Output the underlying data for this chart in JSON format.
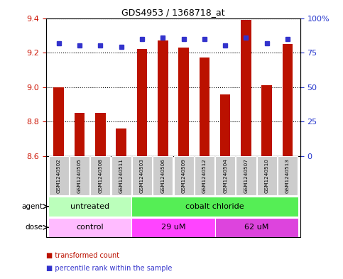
{
  "title": "GDS4953 / 1368718_at",
  "samples": [
    "GSM1240502",
    "GSM1240505",
    "GSM1240508",
    "GSM1240511",
    "GSM1240503",
    "GSM1240506",
    "GSM1240509",
    "GSM1240512",
    "GSM1240504",
    "GSM1240507",
    "GSM1240510",
    "GSM1240513"
  ],
  "bar_values": [
    9.0,
    8.85,
    8.85,
    8.76,
    9.22,
    9.27,
    9.23,
    9.17,
    8.96,
    9.39,
    9.01,
    9.25
  ],
  "percentile_values": [
    82,
    80,
    80,
    79,
    85,
    86,
    85,
    85,
    80,
    86,
    82,
    85
  ],
  "bar_bottom": 8.6,
  "ylim_left": [
    8.6,
    9.4
  ],
  "ylim_right": [
    0,
    100
  ],
  "yticks_left": [
    8.6,
    8.8,
    9.0,
    9.2,
    9.4
  ],
  "yticks_right": [
    0,
    25,
    50,
    75,
    100
  ],
  "ytick_labels_right": [
    "0",
    "25",
    "50",
    "75",
    "100%"
  ],
  "bar_color": "#bb1100",
  "percentile_color": "#3333cc",
  "grid_color": "black",
  "agent_groups": [
    {
      "label": "untreated",
      "start": 0,
      "end": 4,
      "color": "#bbffbb"
    },
    {
      "label": "cobalt chloride",
      "start": 4,
      "end": 12,
      "color": "#55ee55"
    }
  ],
  "dose_groups": [
    {
      "label": "control",
      "start": 0,
      "end": 4,
      "color": "#ffbbff"
    },
    {
      "label": "29 uM",
      "start": 4,
      "end": 8,
      "color": "#ff44ff"
    },
    {
      "label": "62 uM",
      "start": 8,
      "end": 12,
      "color": "#dd44dd"
    }
  ],
  "left_label_color": "#cc1100",
  "right_label_color": "#2233cc",
  "sample_box_color": "#cccccc",
  "background_color": "#ffffff",
  "fig_width": 4.83,
  "fig_height": 3.93,
  "dpi": 100
}
